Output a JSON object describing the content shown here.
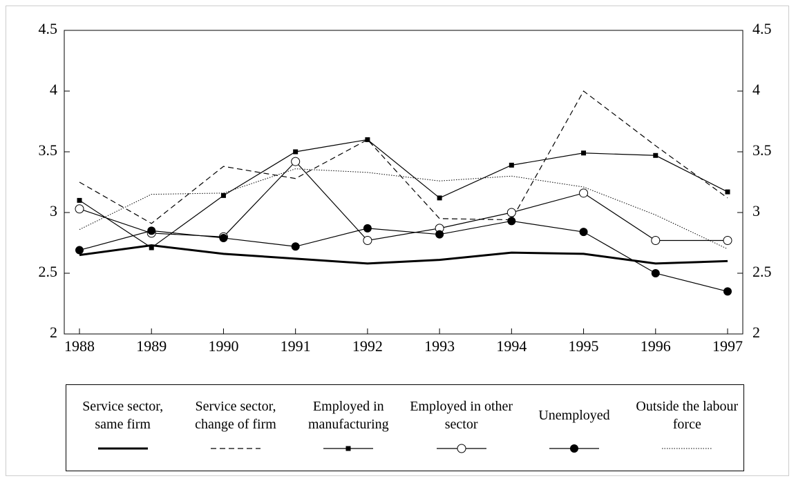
{
  "chart_data": {
    "type": "line",
    "categories": [
      "1988",
      "1989",
      "1990",
      "1991",
      "1992",
      "1993",
      "1994",
      "1995",
      "1996",
      "1997"
    ],
    "ylim": [
      2,
      4.5
    ],
    "yticks": [
      2,
      2.5,
      3,
      3.5,
      4,
      4.5
    ],
    "y2lim": [
      2,
      4.5
    ],
    "y2ticks": [
      2,
      2.5,
      3,
      3.5,
      4,
      4.5
    ],
    "legend": "bottom",
    "series": [
      {
        "name": "Service sector, same firm",
        "color": "#000000",
        "width": 3,
        "dash": "",
        "marker": "none",
        "values": [
          2.65,
          2.73,
          2.66,
          2.62,
          2.58,
          2.61,
          2.67,
          2.66,
          2.58,
          2.6
        ]
      },
      {
        "name": "Service sector, change of firm",
        "color": "#000000",
        "width": 1.2,
        "dash": "8 5",
        "marker": "none",
        "values": [
          3.25,
          2.91,
          3.38,
          3.28,
          3.6,
          2.95,
          2.94,
          4.0,
          3.55,
          3.12
        ]
      },
      {
        "name": "Employed in manufacturing",
        "color": "#000000",
        "width": 1.2,
        "dash": "",
        "marker": "square",
        "values": [
          3.1,
          2.71,
          3.14,
          3.5,
          3.6,
          3.12,
          3.39,
          3.49,
          3.47,
          3.17
        ]
      },
      {
        "name": "Employed in other sector",
        "color": "#000000",
        "width": 1.2,
        "dash": "",
        "marker": "open-circle",
        "values": [
          3.03,
          2.83,
          2.8,
          3.42,
          2.77,
          2.87,
          3.0,
          3.16,
          2.77,
          2.77
        ]
      },
      {
        "name": "Unemployed",
        "color": "#000000",
        "width": 1.2,
        "dash": "",
        "marker": "filled-circle",
        "values": [
          2.69,
          2.85,
          2.79,
          2.72,
          2.87,
          2.82,
          2.93,
          2.84,
          2.5,
          2.35
        ]
      },
      {
        "name": "Outside the labour force",
        "color": "#000000",
        "width": 1,
        "dash": "1.5 2",
        "marker": "none",
        "values": [
          2.86,
          3.15,
          3.16,
          3.36,
          3.33,
          3.26,
          3.3,
          3.21,
          2.98,
          2.7
        ]
      }
    ]
  }
}
